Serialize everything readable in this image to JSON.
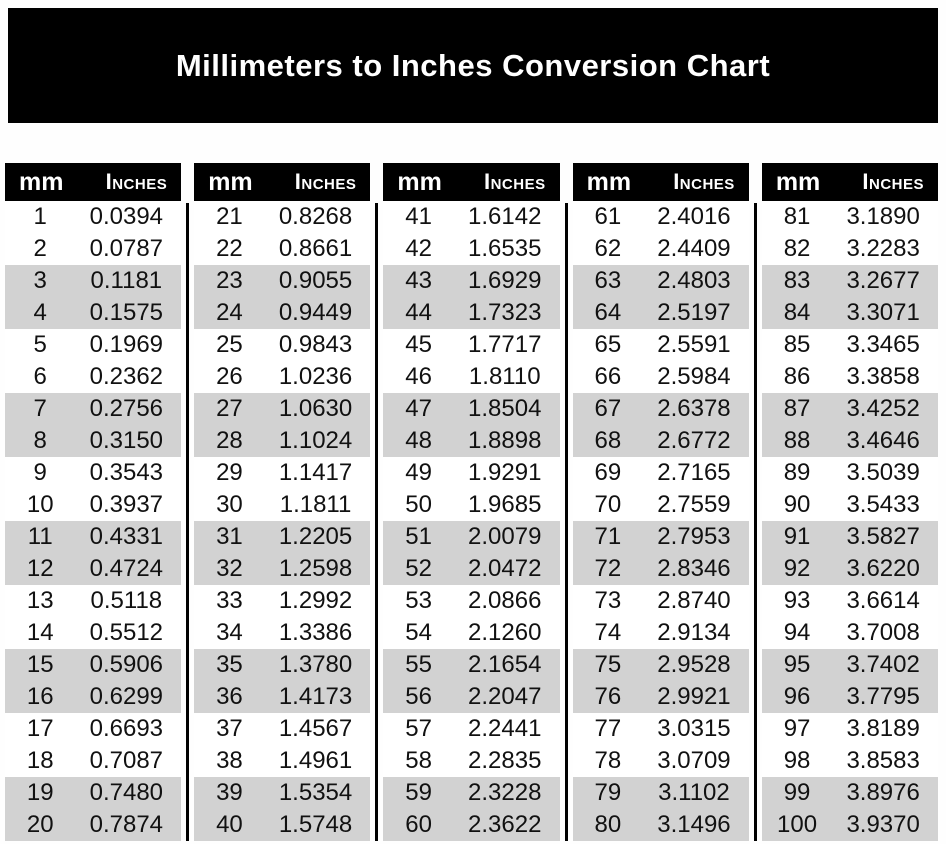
{
  "page": {
    "title": "Millimeters to Inches Conversion Chart"
  },
  "colors": {
    "banner_bg": "#000000",
    "header_bg": "#000000",
    "header_text": "#ffffff",
    "body_text": "#111111",
    "row_plain": "#ffffff",
    "row_shaded": "#d2d2d2",
    "divider": "#000000"
  },
  "chart_data": {
    "type": "table",
    "title": "Millimeters to Inches Conversion Chart",
    "columns": [
      "mm",
      "Inches"
    ],
    "layout": {
      "column_groups": 5,
      "rows_per_group": 20,
      "row_shading_pattern": "two white rows alternating with two gray rows",
      "legend_position": "none",
      "grid": "off"
    },
    "rows": [
      [
        1,
        "0.0394"
      ],
      [
        2,
        "0.0787"
      ],
      [
        3,
        "0.1181"
      ],
      [
        4,
        "0.1575"
      ],
      [
        5,
        "0.1969"
      ],
      [
        6,
        "0.2362"
      ],
      [
        7,
        "0.2756"
      ],
      [
        8,
        "0.3150"
      ],
      [
        9,
        "0.3543"
      ],
      [
        10,
        "0.3937"
      ],
      [
        11,
        "0.4331"
      ],
      [
        12,
        "0.4724"
      ],
      [
        13,
        "0.5118"
      ],
      [
        14,
        "0.5512"
      ],
      [
        15,
        "0.5906"
      ],
      [
        16,
        "0.6299"
      ],
      [
        17,
        "0.6693"
      ],
      [
        18,
        "0.7087"
      ],
      [
        19,
        "0.7480"
      ],
      [
        20,
        "0.7874"
      ],
      [
        21,
        "0.8268"
      ],
      [
        22,
        "0.8661"
      ],
      [
        23,
        "0.9055"
      ],
      [
        24,
        "0.9449"
      ],
      [
        25,
        "0.9843"
      ],
      [
        26,
        "1.0236"
      ],
      [
        27,
        "1.0630"
      ],
      [
        28,
        "1.1024"
      ],
      [
        29,
        "1.1417"
      ],
      [
        30,
        "1.1811"
      ],
      [
        31,
        "1.2205"
      ],
      [
        32,
        "1.2598"
      ],
      [
        33,
        "1.2992"
      ],
      [
        34,
        "1.3386"
      ],
      [
        35,
        "1.3780"
      ],
      [
        36,
        "1.4173"
      ],
      [
        37,
        "1.4567"
      ],
      [
        38,
        "1.4961"
      ],
      [
        39,
        "1.5354"
      ],
      [
        40,
        "1.5748"
      ],
      [
        41,
        "1.6142"
      ],
      [
        42,
        "1.6535"
      ],
      [
        43,
        "1.6929"
      ],
      [
        44,
        "1.7323"
      ],
      [
        45,
        "1.7717"
      ],
      [
        46,
        "1.8110"
      ],
      [
        47,
        "1.8504"
      ],
      [
        48,
        "1.8898"
      ],
      [
        49,
        "1.9291"
      ],
      [
        50,
        "1.9685"
      ],
      [
        51,
        "2.0079"
      ],
      [
        52,
        "2.0472"
      ],
      [
        53,
        "2.0866"
      ],
      [
        54,
        "2.1260"
      ],
      [
        55,
        "2.1654"
      ],
      [
        56,
        "2.2047"
      ],
      [
        57,
        "2.2441"
      ],
      [
        58,
        "2.2835"
      ],
      [
        59,
        "2.3228"
      ],
      [
        60,
        "2.3622"
      ],
      [
        61,
        "2.4016"
      ],
      [
        62,
        "2.4409"
      ],
      [
        63,
        "2.4803"
      ],
      [
        64,
        "2.5197"
      ],
      [
        65,
        "2.5591"
      ],
      [
        66,
        "2.5984"
      ],
      [
        67,
        "2.6378"
      ],
      [
        68,
        "2.6772"
      ],
      [
        69,
        "2.7165"
      ],
      [
        70,
        "2.7559"
      ],
      [
        71,
        "2.7953"
      ],
      [
        72,
        "2.8346"
      ],
      [
        73,
        "2.8740"
      ],
      [
        74,
        "2.9134"
      ],
      [
        75,
        "2.9528"
      ],
      [
        76,
        "2.9921"
      ],
      [
        77,
        "3.0315"
      ],
      [
        78,
        "3.0709"
      ],
      [
        79,
        "3.1102"
      ],
      [
        80,
        "3.1496"
      ],
      [
        81,
        "3.1890"
      ],
      [
        82,
        "3.2283"
      ],
      [
        83,
        "3.2677"
      ],
      [
        84,
        "3.3071"
      ],
      [
        85,
        "3.3465"
      ],
      [
        86,
        "3.3858"
      ],
      [
        87,
        "3.4252"
      ],
      [
        88,
        "3.4646"
      ],
      [
        89,
        "3.5039"
      ],
      [
        90,
        "3.5433"
      ],
      [
        91,
        "3.5827"
      ],
      [
        92,
        "3.6220"
      ],
      [
        93,
        "3.6614"
      ],
      [
        94,
        "3.7008"
      ],
      [
        95,
        "3.7402"
      ],
      [
        96,
        "3.7795"
      ],
      [
        97,
        "3.8189"
      ],
      [
        98,
        "3.8583"
      ],
      [
        99,
        "3.8976"
      ],
      [
        100,
        "3.9370"
      ]
    ]
  }
}
